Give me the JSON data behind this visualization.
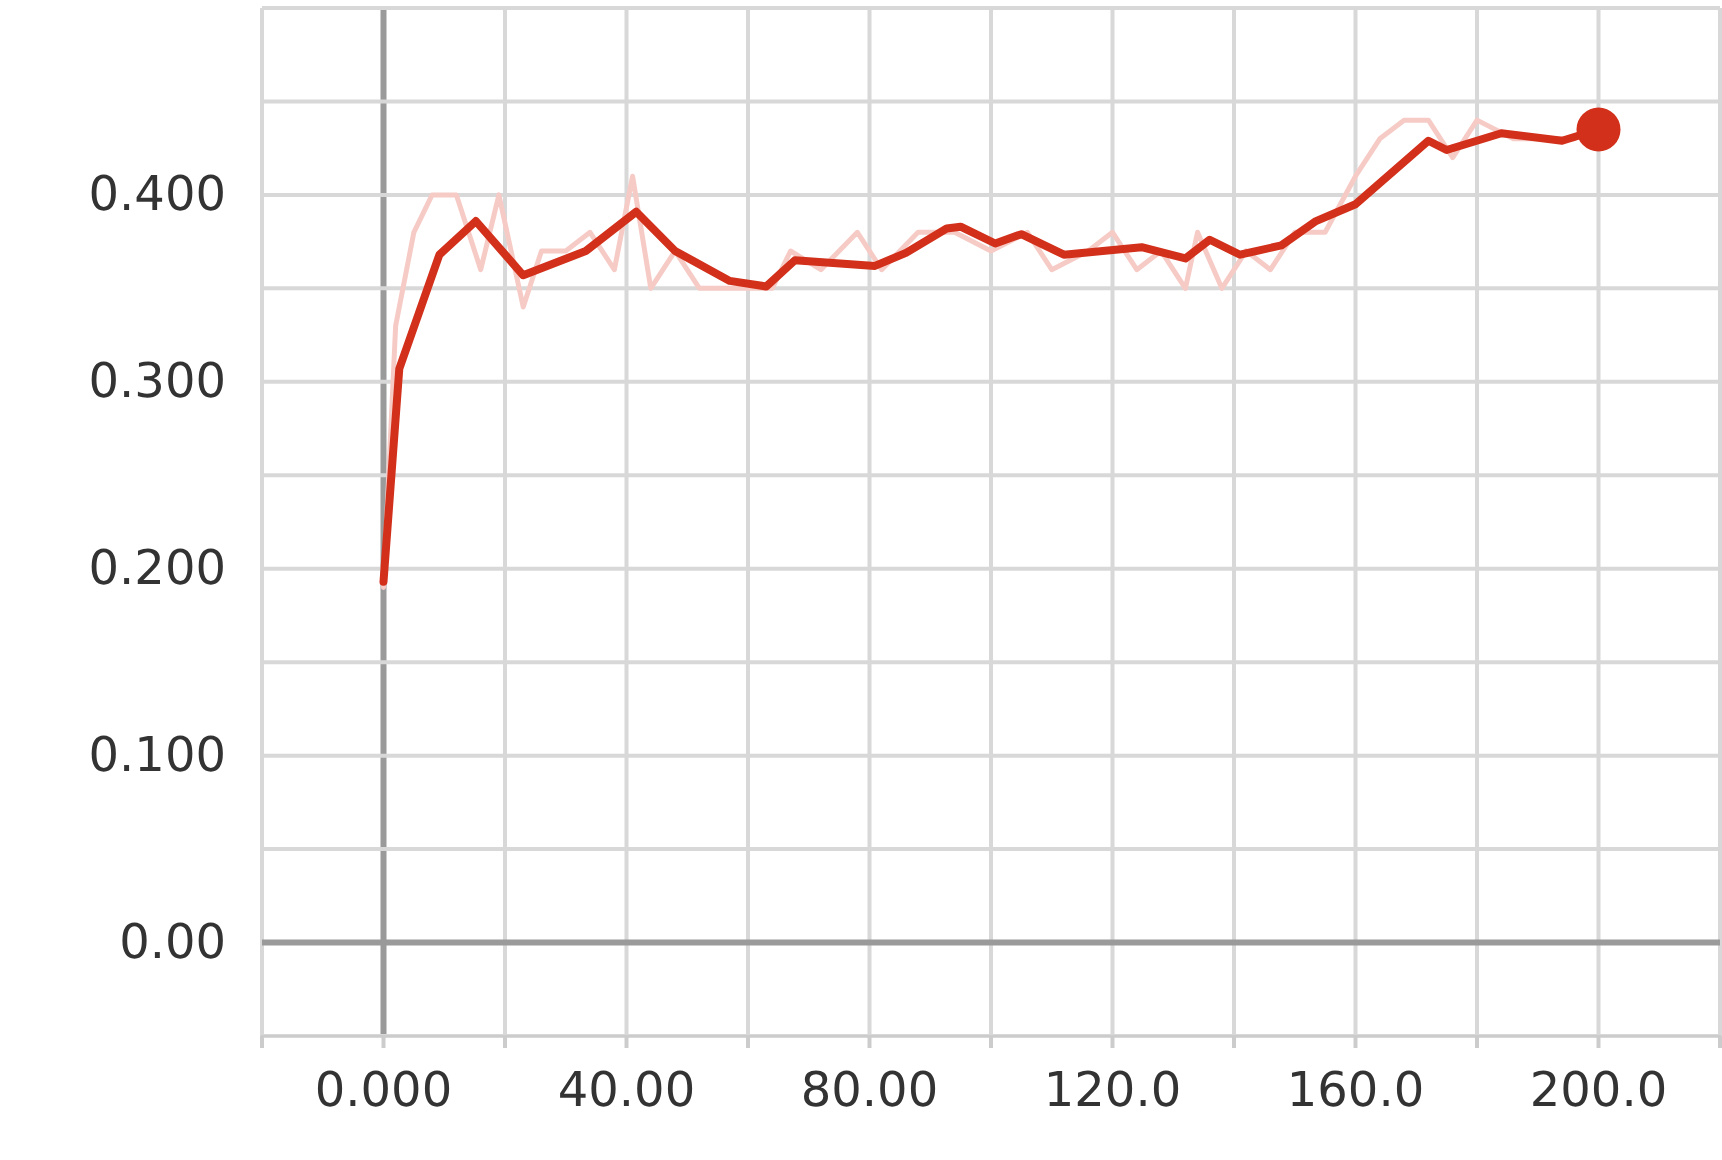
{
  "chart_data": {
    "type": "line",
    "xlim": [
      -20,
      220
    ],
    "ylim": [
      -0.05,
      0.5
    ],
    "xticks": [
      {
        "value": -20,
        "label": null
      },
      {
        "value": 0,
        "label": "0.000"
      },
      {
        "value": 20,
        "label": null
      },
      {
        "value": 40,
        "label": "40.00"
      },
      {
        "value": 60,
        "label": null
      },
      {
        "value": 80,
        "label": "80.00"
      },
      {
        "value": 100,
        "label": null
      },
      {
        "value": 120,
        "label": "120.0"
      },
      {
        "value": 140,
        "label": null
      },
      {
        "value": 160,
        "label": "160.0"
      },
      {
        "value": 180,
        "label": null
      },
      {
        "value": 200,
        "label": "200.0"
      },
      {
        "value": 220,
        "label": null
      }
    ],
    "yticks": [
      {
        "value": -0.05,
        "label": null
      },
      {
        "value": 0,
        "label": "0.00"
      },
      {
        "value": 0.05,
        "label": null
      },
      {
        "value": 0.1,
        "label": "0.100"
      },
      {
        "value": 0.15,
        "label": null
      },
      {
        "value": 0.2,
        "label": "0.200"
      },
      {
        "value": 0.25,
        "label": null
      },
      {
        "value": 0.3,
        "label": "0.300"
      },
      {
        "value": 0.35,
        "label": null
      },
      {
        "value": 0.4,
        "label": "0.400"
      },
      {
        "value": 0.45,
        "label": null
      },
      {
        "value": 0.5,
        "label": null
      }
    ],
    "grid": true,
    "series": [
      {
        "color": "#f6cbc6",
        "x": [
          0,
          2,
          5,
          8,
          12,
          16,
          19,
          23,
          26,
          30,
          34,
          38,
          41,
          44,
          48,
          52,
          56,
          60,
          64,
          67,
          72,
          78,
          82,
          88,
          94,
          100,
          106,
          110,
          116,
          120,
          124,
          128,
          132,
          134,
          138,
          142,
          146,
          150,
          155,
          160,
          164,
          168,
          172,
          176,
          180,
          186,
          192,
          196
        ],
        "values": [
          0.19,
          0.33,
          0.38,
          0.4,
          0.4,
          0.36,
          0.4,
          0.34,
          0.37,
          0.37,
          0.38,
          0.36,
          0.41,
          0.35,
          0.37,
          0.35,
          0.35,
          0.35,
          0.35,
          0.37,
          0.36,
          0.38,
          0.36,
          0.38,
          0.38,
          0.37,
          0.38,
          0.36,
          0.37,
          0.38,
          0.36,
          0.37,
          0.35,
          0.38,
          0.35,
          0.37,
          0.36,
          0.38,
          0.38,
          0.41,
          0.43,
          0.44,
          0.44,
          0.42,
          0.44,
          0.43,
          0.43,
          0.43
        ]
      },
      {
        "color": "#d2301b",
        "x": [
          0,
          2.6,
          9.2,
          15.2,
          23,
          33.3,
          41.6,
          48,
          57,
          63,
          67.7,
          80.9,
          86,
          92.7,
          95,
          100.7,
          105,
          112,
          124.8,
          132,
          136,
          141,
          147.8,
          153.5,
          160,
          172,
          175,
          184,
          194,
          200
        ],
        "values": [
          0.193,
          0.307,
          0.368,
          0.386,
          0.357,
          0.37,
          0.391,
          0.37,
          0.354,
          0.351,
          0.365,
          0.362,
          0.369,
          0.382,
          0.383,
          0.374,
          0.379,
          0.368,
          0.372,
          0.366,
          0.376,
          0.368,
          0.373,
          0.386,
          0.395,
          0.429,
          0.424,
          0.433,
          0.429,
          0.435
        ]
      },
      {
        "type": "scatter",
        "color": "#d2301b",
        "marker": "circle",
        "x": [
          200
        ],
        "values": [
          0.435
        ]
      }
    ]
  }
}
